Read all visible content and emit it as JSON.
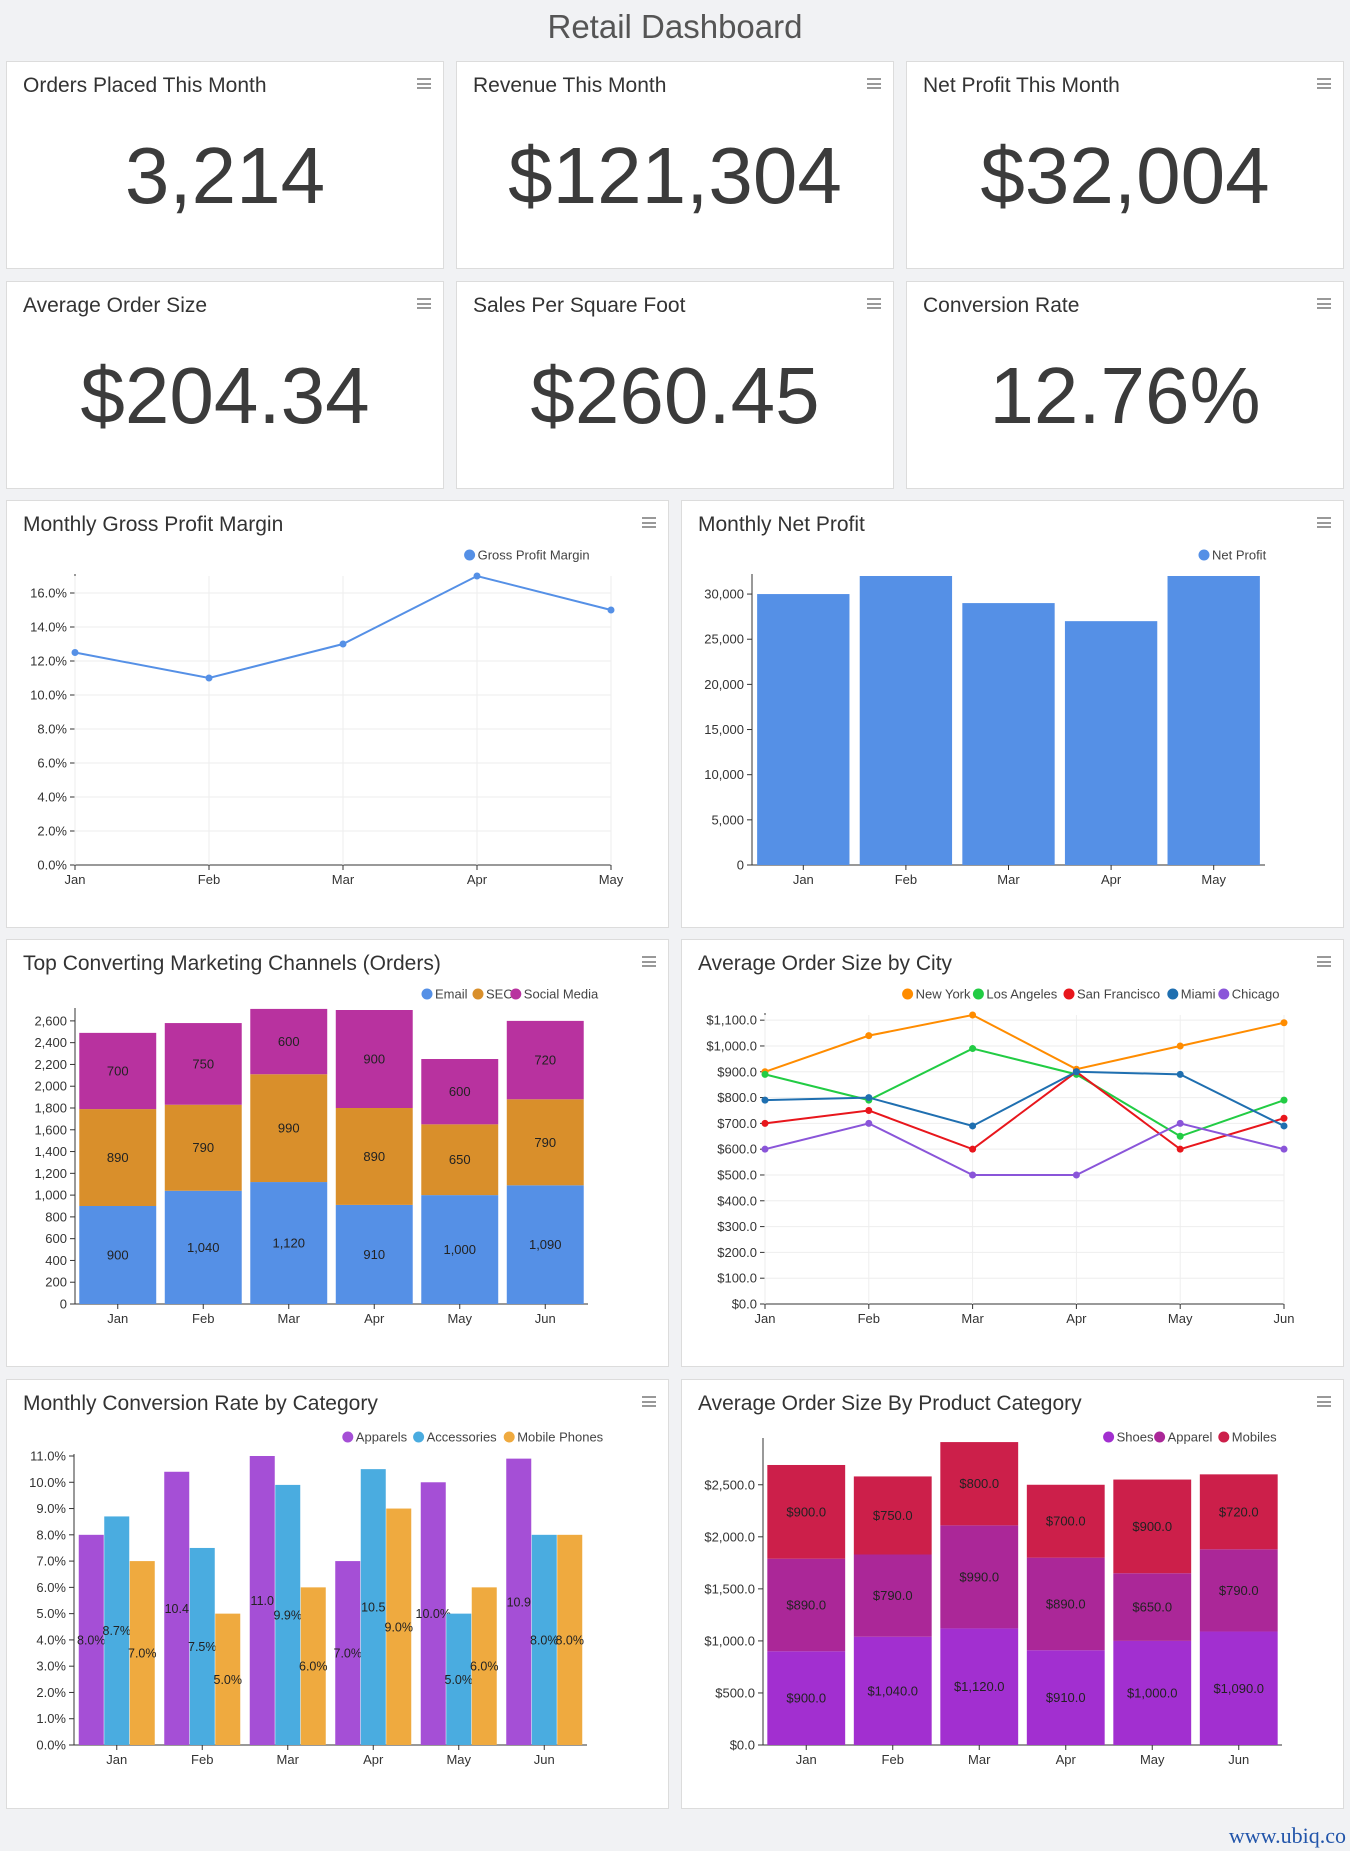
{
  "page": {
    "title": "Retail Dashboard",
    "watermark": "www.ubiq.co"
  },
  "kpis": [
    {
      "title": "Orders Placed This Month",
      "value": "3,214"
    },
    {
      "title": "Revenue This Month",
      "value": "$121,304"
    },
    {
      "title": "Net Profit This Month",
      "value": "$32,004"
    },
    {
      "title": "Average Order Size",
      "value": "$204.34"
    },
    {
      "title": "Sales Per Square Foot",
      "value": "$260.45"
    },
    {
      "title": "Conversion Rate",
      "value": "12.76%"
    }
  ],
  "colors": {
    "blue": "#5590e6",
    "orange": "#d98f2b",
    "magenta": "#b8329f",
    "ny": "#ff8c00",
    "la": "#22cc44",
    "sf": "#e8161c",
    "mia": "#1f6fb0",
    "chi": "#8a55d9",
    "apparels": "#a54fd6",
    "accessories": "#4aace0",
    "mobilephones": "#efaa3f",
    "shoes": "#a22fd0",
    "apparel": "#ab2798",
    "mobiles": "#cc1f4a"
  },
  "chart_data": [
    {
      "id": "gpm",
      "title": "Monthly Gross Profit Margin",
      "type": "line",
      "categories": [
        "Jan",
        "Feb",
        "Mar",
        "Apr",
        "May"
      ],
      "series": [
        {
          "name": "Gross Profit Margin",
          "values": [
            12.5,
            11.0,
            13.0,
            17.0,
            15.0
          ],
          "color": "#5590e6"
        }
      ],
      "yticks": [
        "0.0%",
        "2.0%",
        "4.0%",
        "6.0%",
        "8.0%",
        "10.0%",
        "12.0%",
        "14.0%",
        "16.0%"
      ],
      "ylim": [
        0,
        17
      ],
      "legend": "top-right",
      "grid": true
    },
    {
      "id": "netprofit",
      "title": "Monthly Net Profit",
      "type": "bar",
      "categories": [
        "Jan",
        "Feb",
        "Mar",
        "Apr",
        "May"
      ],
      "series": [
        {
          "name": "Net Profit",
          "values": [
            30000,
            32000,
            29000,
            27000,
            32000
          ],
          "color": "#5590e6"
        }
      ],
      "yticks": [
        "0",
        "5,000",
        "10,000",
        "15,000",
        "20,000",
        "25,000",
        "30,000"
      ],
      "ylim": [
        0,
        32000
      ],
      "legend": "top-right",
      "grid": false
    },
    {
      "id": "channels",
      "title": "Top Converting Marketing Channels (Orders)",
      "type": "bar",
      "stacked": true,
      "categories": [
        "Jan",
        "Feb",
        "Mar",
        "Apr",
        "May",
        "Jun"
      ],
      "series": [
        {
          "name": "Email",
          "values": [
            900,
            1040,
            1120,
            910,
            1000,
            1090
          ],
          "labels": [
            "900",
            "1,040",
            "1,120",
            "910",
            "1,000",
            "1,090"
          ],
          "color": "#5590e6"
        },
        {
          "name": "SEO",
          "values": [
            890,
            790,
            990,
            890,
            650,
            790
          ],
          "labels": [
            "890",
            "790",
            "990",
            "890",
            "650",
            "790"
          ],
          "color": "#d98f2b"
        },
        {
          "name": "Social Media",
          "values": [
            700,
            750,
            600,
            900,
            600,
            720
          ],
          "labels": [
            "700",
            "750",
            "600",
            "900",
            "600",
            "720"
          ],
          "color": "#b8329f"
        }
      ],
      "yticks": [
        "0",
        "200",
        "400",
        "600",
        "800",
        "1,000",
        "1,200",
        "1,400",
        "1,600",
        "1,800",
        "2,000",
        "2,200",
        "2,400",
        "2,600"
      ],
      "ylim": [
        0,
        2700
      ],
      "legend": "top-right",
      "grid": false
    },
    {
      "id": "city",
      "title": "Average Order Size by City",
      "type": "line",
      "categories": [
        "Jan",
        "Feb",
        "Mar",
        "Apr",
        "May",
        "Jun"
      ],
      "series": [
        {
          "name": "New York",
          "values": [
            900,
            1040,
            1120,
            910,
            1000,
            1090
          ],
          "color": "#ff8c00"
        },
        {
          "name": "Los Angeles",
          "values": [
            890,
            790,
            990,
            890,
            650,
            790
          ],
          "color": "#22cc44"
        },
        {
          "name": "San Francisco",
          "values": [
            700,
            750,
            600,
            900,
            600,
            720
          ],
          "color": "#e8161c"
        },
        {
          "name": "Miami",
          "values": [
            790,
            800,
            690,
            900,
            890,
            690
          ],
          "color": "#1f6fb0"
        },
        {
          "name": "Chicago",
          "values": [
            600,
            700,
            500,
            500,
            700,
            600
          ],
          "color": "#8a55d9"
        }
      ],
      "yticks": [
        "$0.0",
        "$100.0",
        "$200.0",
        "$300.0",
        "$400.0",
        "$500.0",
        "$600.0",
        "$700.0",
        "$800.0",
        "$900.0",
        "$1,000.0",
        "$1,100.0"
      ],
      "ylim": [
        0,
        1120
      ],
      "legend": "top-right",
      "grid": true
    },
    {
      "id": "convcat",
      "title": "Monthly Conversion Rate by Category",
      "type": "bar",
      "categories": [
        "Jan",
        "Feb",
        "Mar",
        "Apr",
        "May",
        "Jun"
      ],
      "series": [
        {
          "name": "Apparels",
          "values": [
            8.0,
            10.4,
            11.0,
            7.0,
            10.0,
            10.9
          ],
          "labels": [
            "8.0%",
            "10.4",
            "11.0",
            "7.0%",
            "10.0%",
            "10.9"
          ],
          "color": "#a54fd6"
        },
        {
          "name": "Accessories",
          "values": [
            8.7,
            7.5,
            9.9,
            10.5,
            5.0,
            8.0
          ],
          "labels": [
            "8.7%",
            "7.5%",
            "9.9%",
            "10.5",
            "5.0%",
            "8.0%"
          ],
          "color": "#4aace0"
        },
        {
          "name": "Mobile Phones",
          "values": [
            7.0,
            5.0,
            6.0,
            9.0,
            6.0,
            8.0
          ],
          "labels": [
            "7.0%",
            "5.0%",
            "6.0%",
            "9.0%",
            "6.0%",
            "8.0%"
          ],
          "color": "#efaa3f"
        }
      ],
      "yticks": [
        "0.0%",
        "1.0%",
        "2.0%",
        "3.0%",
        "4.0%",
        "5.0%",
        "6.0%",
        "7.0%",
        "8.0%",
        "9.0%",
        "10.0%",
        "11.0%"
      ],
      "ylim": [
        0,
        11
      ],
      "legend": "top-right",
      "grid": false
    },
    {
      "id": "prodcat",
      "title": "Average Order Size By Product Category",
      "type": "bar",
      "stacked": true,
      "categories": [
        "Jan",
        "Feb",
        "Mar",
        "Apr",
        "May",
        "Jun"
      ],
      "series": [
        {
          "name": "Shoes",
          "values": [
            900,
            1040,
            1120,
            910,
            1000,
            1090
          ],
          "labels": [
            "$900.0",
            "$1,040.0",
            "$1,120.0",
            "$910.0",
            "$1,000.0",
            "$1,090.0"
          ],
          "color": "#a22fd0"
        },
        {
          "name": "Apparel",
          "values": [
            890,
            790,
            990,
            890,
            650,
            790
          ],
          "labels": [
            "$890.0",
            "$790.0",
            "$990.0",
            "$890.0",
            "$650.0",
            "$790.0"
          ],
          "color": "#ab2798"
        },
        {
          "name": "Mobiles",
          "values": [
            900,
            750,
            800,
            700,
            900,
            720
          ],
          "labels": [
            "$900.0",
            "$750.0",
            "$800.0",
            "$700.0",
            "$900.0",
            "$720.0"
          ],
          "color": "#cc1f4a"
        }
      ],
      "yticks": [
        "$0.0",
        "$500.0",
        "$1,000.0",
        "$1,500.0",
        "$2,000.0",
        "$2,500.0"
      ],
      "yvalues": [
        0,
        500,
        1000,
        1500,
        2000,
        2500
      ],
      "ylim": [
        0,
        2930
      ],
      "legend": "top-right",
      "grid": false
    }
  ]
}
